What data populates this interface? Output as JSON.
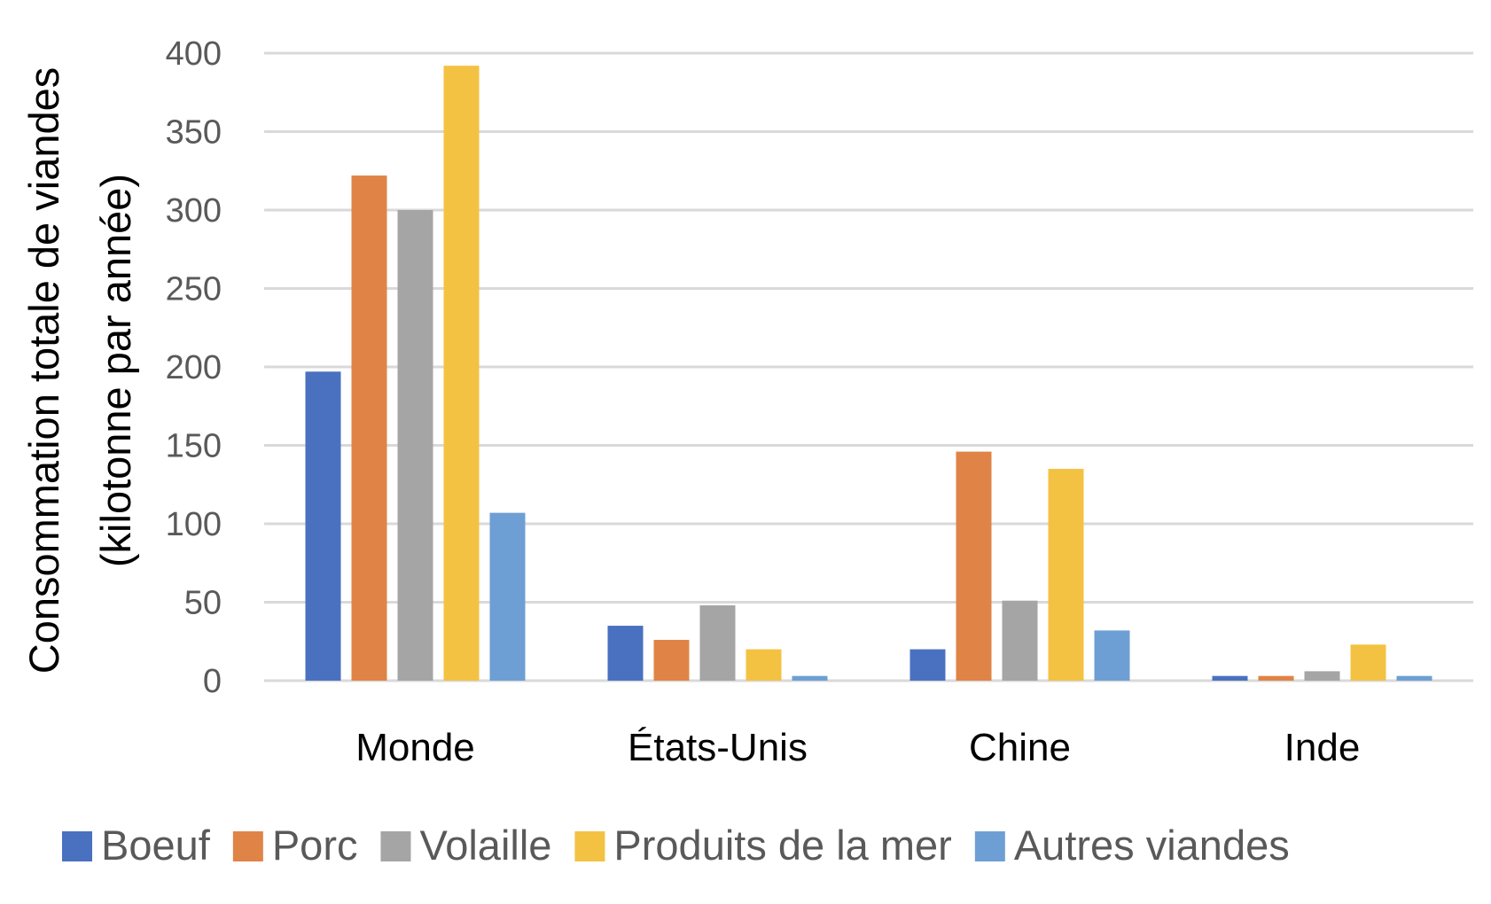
{
  "chart_data": {
    "type": "bar",
    "ylabel": [
      "Consommation totale  de viandes",
      "(kilotonne par année)"
    ],
    "xlabel": "",
    "ylim": [
      0,
      400
    ],
    "yticks": [
      0,
      50,
      100,
      150,
      200,
      250,
      300,
      350,
      400
    ],
    "grid": true,
    "legend_position": "bottom",
    "categories": [
      "Monde",
      "États-Unis",
      "Chine",
      "Inde"
    ],
    "series": [
      {
        "name": "Boeuf",
        "color": "#4a71c0",
        "values": [
          197,
          35,
          20,
          3
        ]
      },
      {
        "name": "Porc",
        "color": "#df8446",
        "values": [
          322,
          26,
          146,
          3
        ]
      },
      {
        "name": "Volaille",
        "color": "#a5a5a5",
        "values": [
          300,
          48,
          51,
          6
        ]
      },
      {
        "name": "Produits de la mer",
        "color": "#f4c242",
        "values": [
          392,
          20,
          135,
          23
        ]
      },
      {
        "name": "Autres viandes",
        "color": "#6e9fd4",
        "values": [
          107,
          3,
          32,
          3
        ]
      }
    ]
  }
}
